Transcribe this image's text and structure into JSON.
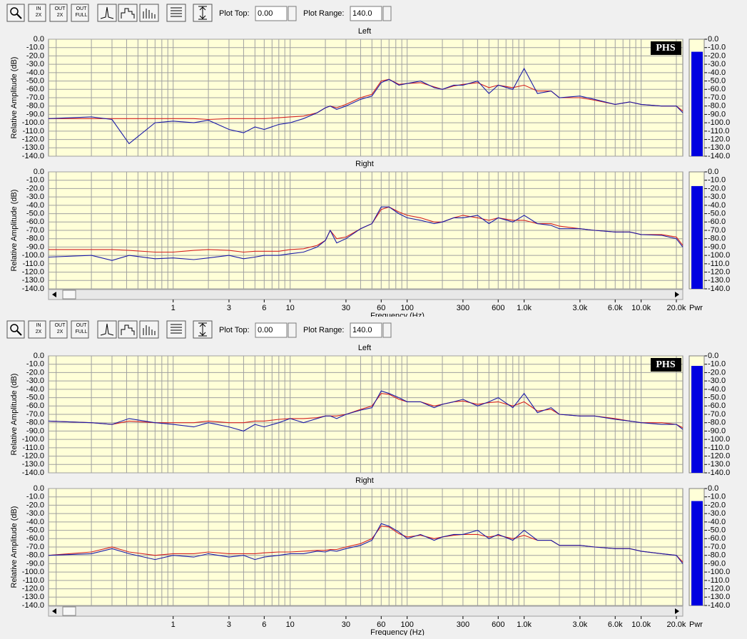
{
  "windows": [
    {
      "icons": [
        [
          "IN",
          "2X"
        ],
        [
          "OUT",
          "2X"
        ],
        [
          "OUT",
          "FULL"
        ]
      ],
      "plot_top_label": "Plot Top:",
      "plot_top": "0.00",
      "plot_range_label": "Plot Range:",
      "plot_range": "140.0",
      "x_label": "Frequency (Hz)",
      "meter_label": "Pwr",
      "xticks": [
        1,
        3,
        6,
        10,
        30,
        60,
        100,
        300,
        600,
        {
          "value": 1000,
          "label": "1.0k"
        },
        {
          "value": 3000,
          "label": "3.0k"
        },
        {
          "value": 6000,
          "label": "6.0k"
        },
        {
          "value": 10000,
          "label": "10.0k"
        },
        {
          "value": 20000,
          "label": "20.0k"
        }
      ]
    },
    {
      "icons": [
        [
          "IN",
          "2X"
        ],
        [
          "OUT",
          "2X"
        ],
        [
          "OUT",
          "FULL"
        ]
      ],
      "plot_top_label": "Plot Top:",
      "plot_top": "0.00",
      "plot_range_label": "Plot Range:",
      "plot_range": "140.0",
      "x_label": "Frequency (Hz)",
      "meter_label": "Pwr",
      "xticks": [
        1,
        3,
        6,
        10,
        30,
        60,
        100,
        300,
        600,
        {
          "value": 1000,
          "label": "1.0k"
        },
        {
          "value": 3000,
          "label": "3.0k"
        },
        {
          "value": 6000,
          "label": "6.0k"
        },
        {
          "value": 10000,
          "label": "10.0k"
        },
        {
          "value": 20000,
          "label": "20.0k"
        }
      ]
    }
  ],
  "chart_data": [
    {
      "type": "line",
      "title": "Left",
      "y_label": "Relative Amplitude (dB)",
      "badge": "PHS",
      "meter": -15,
      "ylim": [
        -140,
        0
      ],
      "yticks": [
        {
          "value": 0,
          "label": "0.0"
        },
        {
          "value": -10,
          "label": "-10.0"
        },
        {
          "value": -20,
          "label": "-20.0"
        },
        {
          "value": -30,
          "label": "-30.0"
        },
        {
          "value": -40,
          "label": "-40.0"
        },
        {
          "value": -50,
          "label": "-50.0"
        },
        {
          "value": -60,
          "label": "-60.0"
        },
        {
          "value": -70,
          "label": "-70.0"
        },
        {
          "value": -80,
          "label": "-80.0"
        },
        {
          "value": -90,
          "label": "-90.0"
        },
        {
          "value": -100,
          "label": "-100.0"
        },
        {
          "value": -110,
          "label": "-110.0"
        },
        {
          "value": -120,
          "label": "-120.0"
        },
        {
          "value": -130,
          "label": "-130.0"
        },
        {
          "value": -140,
          "label": "-140.0"
        }
      ],
      "xlim": [
        0.086,
        22700
      ],
      "log_x": true,
      "grid": true,
      "xgrid": [
        0.1,
        0.2,
        0.3,
        0.4,
        0.5,
        0.6,
        0.7,
        0.8,
        0.9,
        1,
        2,
        3,
        4,
        5,
        6,
        7,
        8,
        9,
        10,
        20,
        30,
        40,
        50,
        60,
        70,
        80,
        90,
        100,
        200,
        300,
        400,
        500,
        600,
        700,
        800,
        900,
        1000,
        2000,
        3000,
        4000,
        5000,
        6000,
        7000,
        8000,
        9000,
        10000,
        20000
      ],
      "x": [
        0.086,
        0.2,
        0.3,
        0.42,
        0.7,
        1,
        1.5,
        2,
        3,
        4,
        5,
        6,
        8,
        10,
        13,
        17,
        20,
        22,
        25,
        30,
        40,
        50,
        60,
        70,
        85,
        100,
        130,
        170,
        200,
        250,
        300,
        400,
        500,
        600,
        800,
        1000,
        1300,
        1700,
        2000,
        3000,
        4000,
        6000,
        8000,
        10000,
        15000,
        20000,
        22700
      ],
      "series": [
        {
          "color": "#d42020",
          "values": [
            -95,
            -95,
            -95,
            -95,
            -95,
            -95,
            -95,
            -96,
            -95,
            -95,
            -95,
            -95,
            -94,
            -93,
            -92,
            -88,
            -82,
            -80,
            -82,
            -78,
            -70,
            -66,
            -50,
            -48,
            -54,
            -53,
            -52,
            -57,
            -60,
            -56,
            -54,
            -52,
            -58,
            -55,
            -58,
            -55,
            -62,
            -62,
            -70,
            -70,
            -73,
            -78,
            -75,
            -78,
            -80,
            -80,
            -86
          ]
        },
        {
          "color": "#1a1aa8",
          "values": [
            -95,
            -93,
            -96,
            -125,
            -100,
            -98,
            -100,
            -97,
            -108,
            -112,
            -105,
            -108,
            -102,
            -100,
            -95,
            -88,
            -82,
            -80,
            -84,
            -80,
            -72,
            -68,
            -52,
            -48,
            -55,
            -53,
            -50,
            -58,
            -60,
            -55,
            -55,
            -50,
            -65,
            -55,
            -60,
            -35,
            -65,
            -62,
            -70,
            -68,
            -72,
            -78,
            -75,
            -78,
            -80,
            -80,
            -88
          ]
        }
      ]
    },
    {
      "type": "line",
      "title": "Right",
      "y_label": "Relative Amplitude (dB)",
      "meter": -17,
      "ylim": [
        -140,
        0
      ],
      "yticks": [
        {
          "value": 0,
          "label": "0.0"
        },
        {
          "value": -10,
          "label": "-10.0"
        },
        {
          "value": -20,
          "label": "-20.0"
        },
        {
          "value": -30,
          "label": "-30.0"
        },
        {
          "value": -40,
          "label": "-40.0"
        },
        {
          "value": -50,
          "label": "-50.0"
        },
        {
          "value": -60,
          "label": "-60.0"
        },
        {
          "value": -70,
          "label": "-70.0"
        },
        {
          "value": -80,
          "label": "-80.0"
        },
        {
          "value": -90,
          "label": "-90.0"
        },
        {
          "value": -100,
          "label": "-100.0"
        },
        {
          "value": -110,
          "label": "-110.0"
        },
        {
          "value": -120,
          "label": "-120.0"
        },
        {
          "value": -130,
          "label": "-130.0"
        },
        {
          "value": -140,
          "label": "-140.0"
        }
      ],
      "xlim": [
        0.086,
        22700
      ],
      "log_x": true,
      "grid": true,
      "xgrid": [
        0.1,
        0.2,
        0.3,
        0.4,
        0.5,
        0.6,
        0.7,
        0.8,
        0.9,
        1,
        2,
        3,
        4,
        5,
        6,
        7,
        8,
        9,
        10,
        20,
        30,
        40,
        50,
        60,
        70,
        80,
        90,
        100,
        200,
        300,
        400,
        500,
        600,
        700,
        800,
        900,
        1000,
        2000,
        3000,
        4000,
        5000,
        6000,
        7000,
        8000,
        9000,
        10000,
        20000
      ],
      "x": [
        0.086,
        0.2,
        0.3,
        0.42,
        0.7,
        1,
        1.5,
        2,
        3,
        4,
        5,
        6,
        8,
        10,
        13,
        17,
        20,
        22,
        25,
        30,
        40,
        50,
        60,
        70,
        85,
        100,
        130,
        170,
        200,
        250,
        300,
        400,
        500,
        600,
        800,
        1000,
        1300,
        1700,
        2000,
        3000,
        4000,
        6000,
        8000,
        10000,
        15000,
        20000,
        22700
      ],
      "series": [
        {
          "color": "#d42020",
          "values": [
            -93,
            -93,
            -93,
            -94,
            -96,
            -96,
            -94,
            -93,
            -94,
            -96,
            -95,
            -95,
            -95,
            -93,
            -92,
            -88,
            -82,
            -70,
            -80,
            -78,
            -68,
            -62,
            -45,
            -42,
            -48,
            -52,
            -55,
            -60,
            -60,
            -55,
            -52,
            -55,
            -58,
            -55,
            -58,
            -58,
            -62,
            -62,
            -65,
            -68,
            -70,
            -72,
            -72,
            -75,
            -75,
            -78,
            -88
          ]
        },
        {
          "color": "#1a1aa8",
          "values": [
            -102,
            -100,
            -106,
            -100,
            -104,
            -103,
            -105,
            -103,
            -100,
            -104,
            -102,
            -100,
            -100,
            -98,
            -96,
            -90,
            -82,
            -70,
            -85,
            -80,
            -68,
            -62,
            -42,
            -42,
            -50,
            -55,
            -58,
            -62,
            -60,
            -55,
            -55,
            -52,
            -62,
            -55,
            -60,
            -52,
            -62,
            -64,
            -68,
            -68,
            -70,
            -72,
            -72,
            -75,
            -76,
            -80,
            -90
          ]
        }
      ]
    },
    {
      "type": "line",
      "title": "Left",
      "y_label": "Relative Amplitude (dB)",
      "badge": "PHS",
      "meter": -12,
      "ylim": [
        -140,
        0
      ],
      "yticks": [
        {
          "value": 0,
          "label": "0.0"
        },
        {
          "value": -10,
          "label": "-10.0"
        },
        {
          "value": -20,
          "label": "-20.0"
        },
        {
          "value": -30,
          "label": "-30.0"
        },
        {
          "value": -40,
          "label": "-40.0"
        },
        {
          "value": -50,
          "label": "-50.0"
        },
        {
          "value": -60,
          "label": "-60.0"
        },
        {
          "value": -70,
          "label": "-70.0"
        },
        {
          "value": -80,
          "label": "-80.0"
        },
        {
          "value": -90,
          "label": "-90.0"
        },
        {
          "value": -100,
          "label": "-100.0"
        },
        {
          "value": -110,
          "label": "-110.0"
        },
        {
          "value": -120,
          "label": "-120.0"
        },
        {
          "value": -130,
          "label": "-130.0"
        },
        {
          "value": -140,
          "label": "-140.0"
        }
      ],
      "xlim": [
        0.086,
        22700
      ],
      "log_x": true,
      "grid": true,
      "xgrid": [
        0.1,
        0.2,
        0.3,
        0.4,
        0.5,
        0.6,
        0.7,
        0.8,
        0.9,
        1,
        2,
        3,
        4,
        5,
        6,
        7,
        8,
        9,
        10,
        20,
        30,
        40,
        50,
        60,
        70,
        80,
        90,
        100,
        200,
        300,
        400,
        500,
        600,
        700,
        800,
        900,
        1000,
        2000,
        3000,
        4000,
        5000,
        6000,
        7000,
        8000,
        9000,
        10000,
        20000
      ],
      "x": [
        0.086,
        0.2,
        0.3,
        0.42,
        0.7,
        1,
        1.5,
        2,
        3,
        4,
        5,
        6,
        8,
        10,
        13,
        17,
        20,
        22,
        25,
        30,
        40,
        50,
        60,
        70,
        85,
        100,
        130,
        170,
        200,
        250,
        300,
        400,
        500,
        600,
        800,
        1000,
        1300,
        1700,
        2000,
        3000,
        4000,
        6000,
        8000,
        10000,
        15000,
        20000,
        22700
      ],
      "series": [
        {
          "color": "#d42020",
          "values": [
            -78,
            -80,
            -82,
            -78,
            -80,
            -80,
            -80,
            -78,
            -80,
            -80,
            -78,
            -78,
            -76,
            -75,
            -75,
            -74,
            -72,
            -72,
            -72,
            -70,
            -64,
            -60,
            -45,
            -46,
            -52,
            -55,
            -55,
            -60,
            -58,
            -55,
            -54,
            -58,
            -56,
            -55,
            -60,
            -55,
            -66,
            -64,
            -70,
            -72,
            -72,
            -75,
            -78,
            -80,
            -80,
            -82,
            -86
          ]
        },
        {
          "color": "#1a1aa8",
          "values": [
            -78,
            -80,
            -82,
            -75,
            -80,
            -82,
            -85,
            -80,
            -85,
            -90,
            -82,
            -85,
            -80,
            -75,
            -80,
            -75,
            -72,
            -72,
            -75,
            -70,
            -65,
            -62,
            -42,
            -45,
            -50,
            -55,
            -55,
            -62,
            -58,
            -55,
            -52,
            -60,
            -55,
            -50,
            -62,
            -45,
            -68,
            -62,
            -70,
            -72,
            -72,
            -76,
            -78,
            -80,
            -82,
            -82,
            -88
          ]
        }
      ]
    },
    {
      "type": "line",
      "title": "Right",
      "y_label": "Relative Amplitude (dB)",
      "meter": -15,
      "ylim": [
        -140,
        0
      ],
      "yticks": [
        {
          "value": 0,
          "label": "0.0"
        },
        {
          "value": -10,
          "label": "-10.0"
        },
        {
          "value": -20,
          "label": "-20.0"
        },
        {
          "value": -30,
          "label": "-30.0"
        },
        {
          "value": -40,
          "label": "-40.0"
        },
        {
          "value": -50,
          "label": "-50.0"
        },
        {
          "value": -60,
          "label": "-60.0"
        },
        {
          "value": -70,
          "label": "-70.0"
        },
        {
          "value": -80,
          "label": "-80.0"
        },
        {
          "value": -90,
          "label": "-90.0"
        },
        {
          "value": -100,
          "label": "-100.0"
        },
        {
          "value": -110,
          "label": "-110.0"
        },
        {
          "value": -120,
          "label": "-120.0"
        },
        {
          "value": -130,
          "label": "-130.0"
        },
        {
          "value": -140,
          "label": "-140.0"
        }
      ],
      "xlim": [
        0.086,
        22700
      ],
      "log_x": true,
      "grid": true,
      "xgrid": [
        0.1,
        0.2,
        0.3,
        0.4,
        0.5,
        0.6,
        0.7,
        0.8,
        0.9,
        1,
        2,
        3,
        4,
        5,
        6,
        7,
        8,
        9,
        10,
        20,
        30,
        40,
        50,
        60,
        70,
        80,
        90,
        100,
        200,
        300,
        400,
        500,
        600,
        700,
        800,
        900,
        1000,
        2000,
        3000,
        4000,
        5000,
        6000,
        7000,
        8000,
        9000,
        10000,
        20000
      ],
      "x": [
        0.086,
        0.2,
        0.3,
        0.42,
        0.7,
        1,
        1.5,
        2,
        3,
        4,
        5,
        6,
        8,
        10,
        13,
        17,
        20,
        22,
        25,
        30,
        40,
        50,
        60,
        70,
        85,
        100,
        130,
        170,
        200,
        250,
        300,
        400,
        500,
        600,
        800,
        1000,
        1300,
        1700,
        2000,
        3000,
        4000,
        6000,
        8000,
        10000,
        15000,
        20000,
        22700
      ],
      "series": [
        {
          "color": "#d42020",
          "values": [
            -80,
            -76,
            -70,
            -76,
            -80,
            -78,
            -78,
            -76,
            -78,
            -78,
            -78,
            -77,
            -76,
            -76,
            -75,
            -74,
            -74,
            -73,
            -73,
            -70,
            -66,
            -60,
            -45,
            -46,
            -54,
            -58,
            -56,
            -60,
            -58,
            -56,
            -55,
            -55,
            -58,
            -56,
            -60,
            -56,
            -62,
            -62,
            -68,
            -68,
            -70,
            -72,
            -72,
            -75,
            -78,
            -80,
            -88
          ]
        },
        {
          "color": "#1a1aa8",
          "values": [
            -80,
            -78,
            -72,
            -78,
            -85,
            -80,
            -82,
            -78,
            -82,
            -80,
            -85,
            -82,
            -80,
            -78,
            -78,
            -75,
            -76,
            -74,
            -75,
            -72,
            -68,
            -62,
            -42,
            -45,
            -52,
            -60,
            -55,
            -62,
            -58,
            -55,
            -55,
            -50,
            -60,
            -55,
            -62,
            -50,
            -62,
            -62,
            -68,
            -68,
            -70,
            -72,
            -72,
            -75,
            -78,
            -80,
            -90
          ]
        }
      ]
    }
  ]
}
